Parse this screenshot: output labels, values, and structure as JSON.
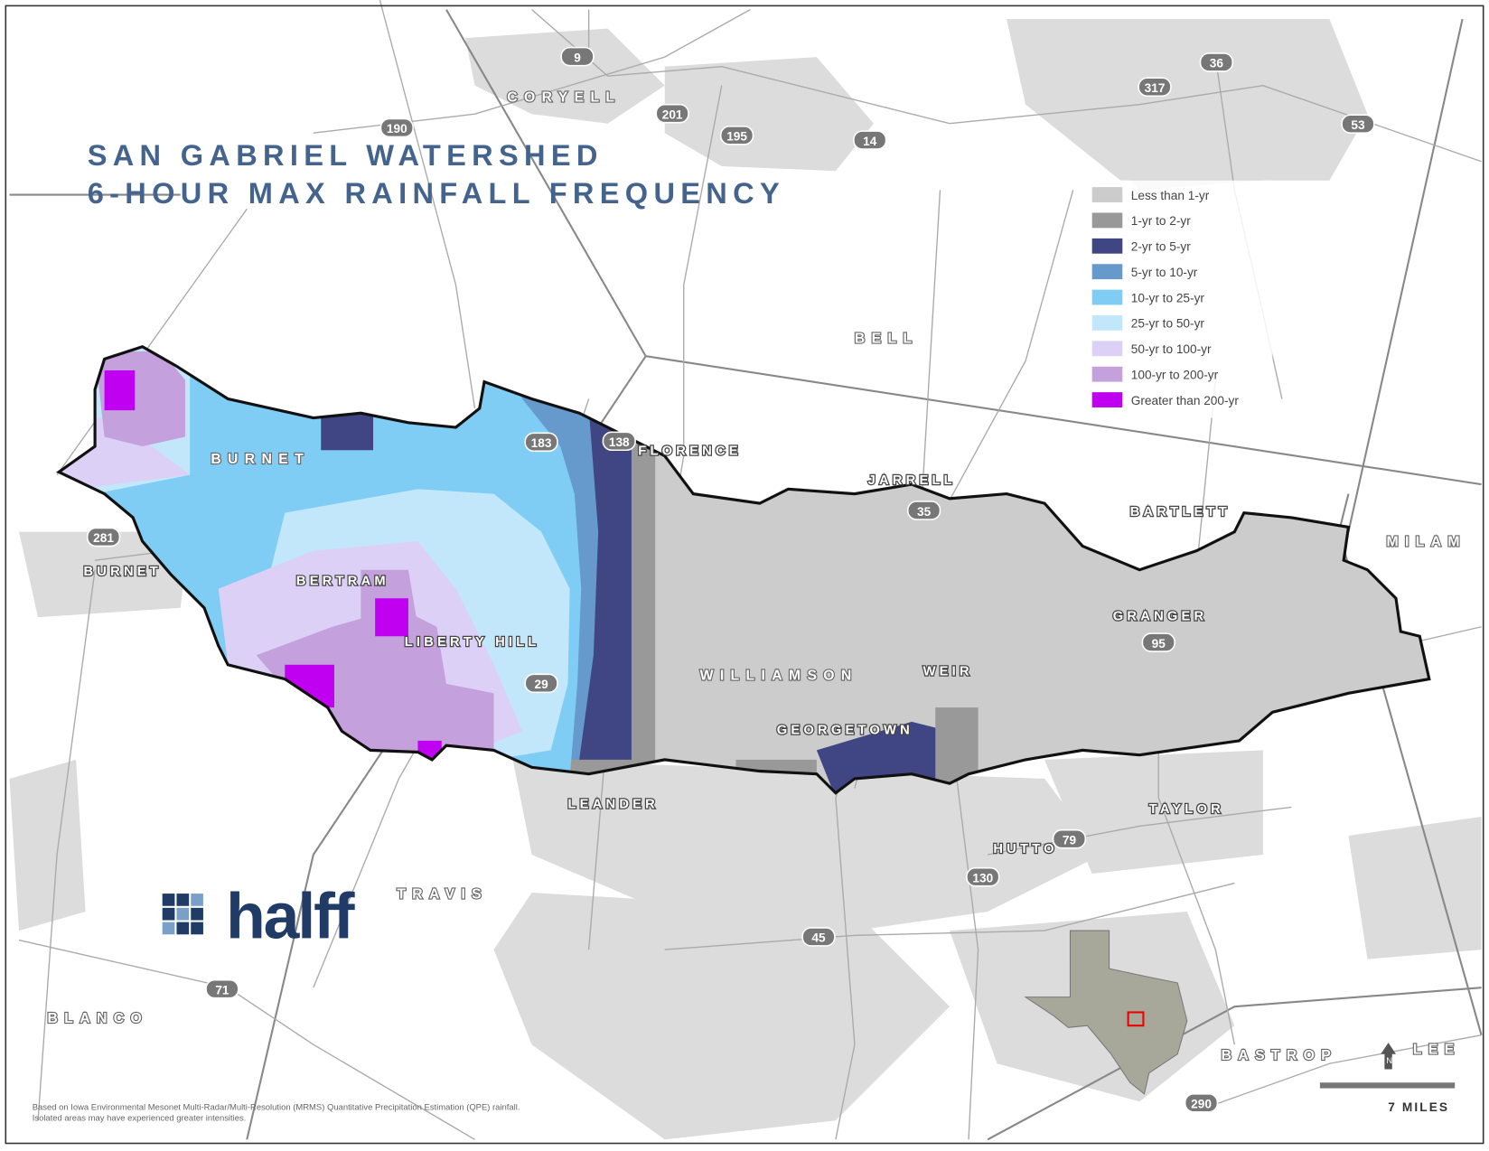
{
  "title": [
    "SAN GABRIEL WATERSHED",
    "6-HOUR MAX RAINFALL FREQUENCY"
  ],
  "legend": {
    "items": [
      {
        "label": "Less than 1-yr",
        "color": "#cccccc"
      },
      {
        "label": "1-yr to 2-yr",
        "color": "#999999"
      },
      {
        "label": "2-yr to 5-yr",
        "color": "#3f4683"
      },
      {
        "label": "5-yr to 10-yr",
        "color": "#6699cc"
      },
      {
        "label": "10-yr to 25-yr",
        "color": "#7fcdf4"
      },
      {
        "label": "25-yr to 50-yr",
        "color": "#c2e7fb"
      },
      {
        "label": "50-yr to 100-yr",
        "color": "#dcd0f7"
      },
      {
        "label": "100-yr to 200-yr",
        "color": "#c4a0dc"
      },
      {
        "label": "Greater than 200-yr",
        "color": "#c000f0"
      }
    ]
  },
  "counties": [
    "CORYELL",
    "BELL",
    "BURNET",
    "MILAM",
    "WILLIAMSON",
    "TRAVIS",
    "BLANCO",
    "BASTROP",
    "LEE"
  ],
  "cities": [
    "FLORENCE",
    "JARRELL",
    "BARTLETT",
    "BURNET",
    "BERTRAM",
    "LIBERTY HILL",
    "WEIR",
    "GRANGER",
    "GEORGETOWN",
    "LEANDER",
    "TAYLOR",
    "HUTTO"
  ],
  "highways": [
    "9",
    "36",
    "317",
    "201",
    "195",
    "190",
    "14",
    "53",
    "183",
    "138",
    "35",
    "281",
    "29",
    "95",
    "79",
    "130",
    "45",
    "71",
    "290"
  ],
  "logo": "halff",
  "north": "N",
  "scale": "7 MILES",
  "footnote": [
    "Based on Iowa Environmental Mesonet Multi-Radar/Multi-Resolution (MRMS) Quantitative Precipitation Estimation (QPE) rainfall.",
    "Isolated areas may have experienced greater intensities."
  ]
}
